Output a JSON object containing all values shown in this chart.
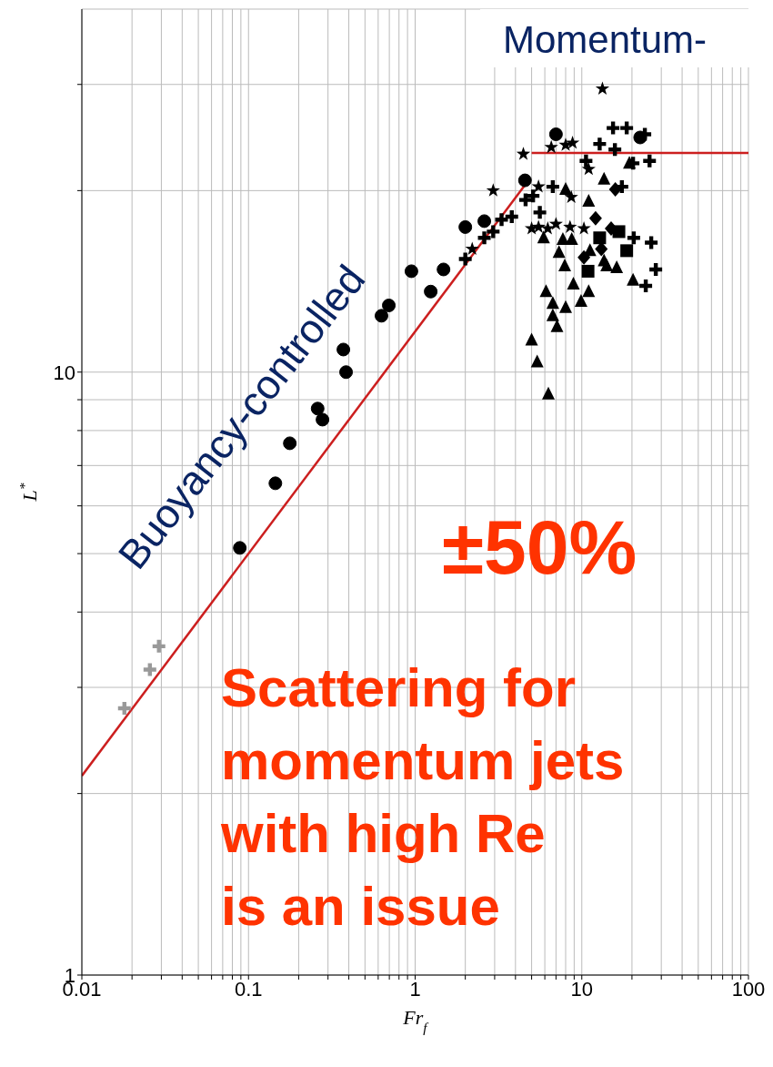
{
  "chart_data": {
    "type": "scatter",
    "xlabel": "Fr$_{f}$",
    "ylabel": "L$^{*}$",
    "log": "xy",
    "grid": true,
    "xlim": [
      0.01,
      100
    ],
    "ylim": [
      1,
      40
    ],
    "xticks": [
      0.01,
      {
        "value": 0.02,
        "label": null
      },
      {
        "value": 0.03,
        "label": null
      },
      {
        "value": 0.04,
        "label": null
      },
      {
        "value": 0.05,
        "label": null
      },
      {
        "value": 0.06,
        "label": null
      },
      {
        "value": 0.07,
        "label": null
      },
      {
        "value": 0.08,
        "label": null
      },
      {
        "value": 0.09,
        "label": null
      },
      0.1,
      {
        "value": 0.2,
        "label": null
      },
      {
        "value": 0.3,
        "label": null
      },
      {
        "value": 0.4,
        "label": null
      },
      {
        "value": 0.5,
        "label": null
      },
      {
        "value": 0.6,
        "label": null
      },
      {
        "value": 0.7,
        "label": null
      },
      {
        "value": 0.8,
        "label": null
      },
      {
        "value": 0.9,
        "label": null
      },
      1,
      {
        "value": 2,
        "label": null
      },
      {
        "value": 3,
        "label": null
      },
      {
        "value": 4,
        "label": null
      },
      {
        "value": 5,
        "label": null
      },
      {
        "value": 6,
        "label": null
      },
      {
        "value": 7,
        "label": null
      },
      {
        "value": 8,
        "label": null
      },
      {
        "value": 9,
        "label": null
      },
      10,
      {
        "value": 20,
        "label": null
      },
      {
        "value": 30,
        "label": null
      },
      {
        "value": 40,
        "label": null
      },
      {
        "value": 50,
        "label": null
      },
      {
        "value": 60,
        "label": null
      },
      {
        "value": 70,
        "label": null
      },
      {
        "value": 80,
        "label": null
      },
      {
        "value": 90,
        "label": null
      },
      100
    ],
    "yticks": [
      1,
      {
        "value": 2,
        "label": null
      },
      {
        "value": 3,
        "label": null
      },
      {
        "value": 4,
        "label": null
      },
      {
        "value": 5,
        "label": null
      },
      {
        "value": 6,
        "label": null
      },
      {
        "value": 7,
        "label": null
      },
      {
        "value": 8,
        "label": null
      },
      {
        "value": 9,
        "label": null
      },
      10,
      {
        "value": 20,
        "label": null
      },
      {
        "value": 30,
        "label": null
      }
    ],
    "series": [
      {
        "marker": "cross",
        "color": "#999999",
        "x": [
          0.018,
          0.0256,
          0.029
        ],
        "values": [
          2.77,
          3.21,
          3.51
        ]
      },
      {
        "marker": "circle",
        "color": "#000000",
        "x": [
          0.0887,
          0.145,
          0.278,
          0.177,
          0.26,
          0.371,
          0.385,
          0.628,
          0.95,
          0.695,
          1.24,
          2.0,
          1.48,
          2.6,
          4.56,
          7.0,
          22.4
        ],
        "values": [
          5.11,
          6.54,
          8.34,
          7.62,
          8.7,
          10.9,
          10.0,
          12.4,
          14.7,
          12.9,
          13.6,
          17.4,
          14.8,
          17.8,
          20.8,
          24.8,
          24.5
        ]
      },
      {
        "marker": "star",
        "color": "#000000",
        "x": [
          2.94,
          2.2,
          4.46,
          6.56,
          8.8,
          13.3,
          8.0,
          5.5,
          6.25,
          8.5,
          10.3,
          11.0,
          8.65,
          5.0,
          7.0,
          5.5
        ],
        "values": [
          20.0,
          16.0,
          23.0,
          23.6,
          24.0,
          29.5,
          23.8,
          20.3,
          17.3,
          17.4,
          17.3,
          21.7,
          19.5,
          17.3,
          17.6,
          17.4
        ]
      },
      {
        "marker": "cross",
        "color": "#000000",
        "x": [
          2.0,
          2.6,
          2.94,
          3.3,
          3.8,
          4.6,
          5.1,
          6.7,
          5.6,
          15.4,
          18.6,
          12.8,
          10.6,
          25.5,
          23.9,
          15.8,
          20.3,
          17.4,
          20.5,
          26.1,
          27.8,
          24.2
        ],
        "values": [
          15.4,
          16.7,
          17.1,
          17.9,
          18.1,
          19.3,
          19.6,
          20.3,
          18.4,
          25.4,
          25.4,
          23.9,
          22.4,
          22.4,
          24.8,
          23.4,
          22.2,
          20.3,
          16.7,
          16.4,
          14.8,
          13.9
        ]
      },
      {
        "marker": "triangle",
        "color": "#000000",
        "x": [
          5.0,
          5.4,
          6.3,
          6.7,
          8.0,
          9.9,
          11.0,
          6.1,
          6.7,
          19.3,
          20.3,
          13.6,
          8.0,
          11.0,
          7.7,
          13.6,
          16.2,
          14.1,
          8.9,
          7.9,
          11.2,
          7.1,
          5.9,
          7.3,
          8.7
        ],
        "values": [
          11.3,
          10.4,
          9.2,
          12.4,
          12.8,
          13.1,
          13.6,
          13.6,
          13.0,
          22.2,
          14.2,
          15.3,
          20.1,
          19.2,
          16.6,
          20.9,
          14.9,
          15.0,
          14.0,
          15.0,
          15.9,
          11.9,
          16.7,
          15.8,
          16.6
        ]
      },
      {
        "marker": "diamond",
        "color": "#000000",
        "x": [
          15.9,
          12.1,
          10.3,
          15.0,
          13.1
        ],
        "values": [
          20.1,
          18.0,
          15.5,
          17.3,
          16.0
        ]
      },
      {
        "marker": "square",
        "color": "#000000",
        "x": [
          12.8,
          16.7,
          10.9,
          18.6
        ],
        "values": [
          16.7,
          17.1,
          14.7,
          15.9
        ]
      },
      {
        "type": "line",
        "marker": "none",
        "color": "#cc1f1f",
        "x": [
          0.01,
          4.85
        ],
        "values": [
          2.14,
          20.9
        ]
      },
      {
        "type": "line",
        "marker": "none",
        "color": "#cc1f1f",
        "x": [
          5.0,
          100
        ],
        "values": [
          23.1,
          23.1
        ]
      }
    ],
    "annotations": [
      "Momentum-",
      "Buoyancy-controlled",
      "±50%",
      "Scattering for momentum jets with high Re is an issue"
    ]
  }
}
